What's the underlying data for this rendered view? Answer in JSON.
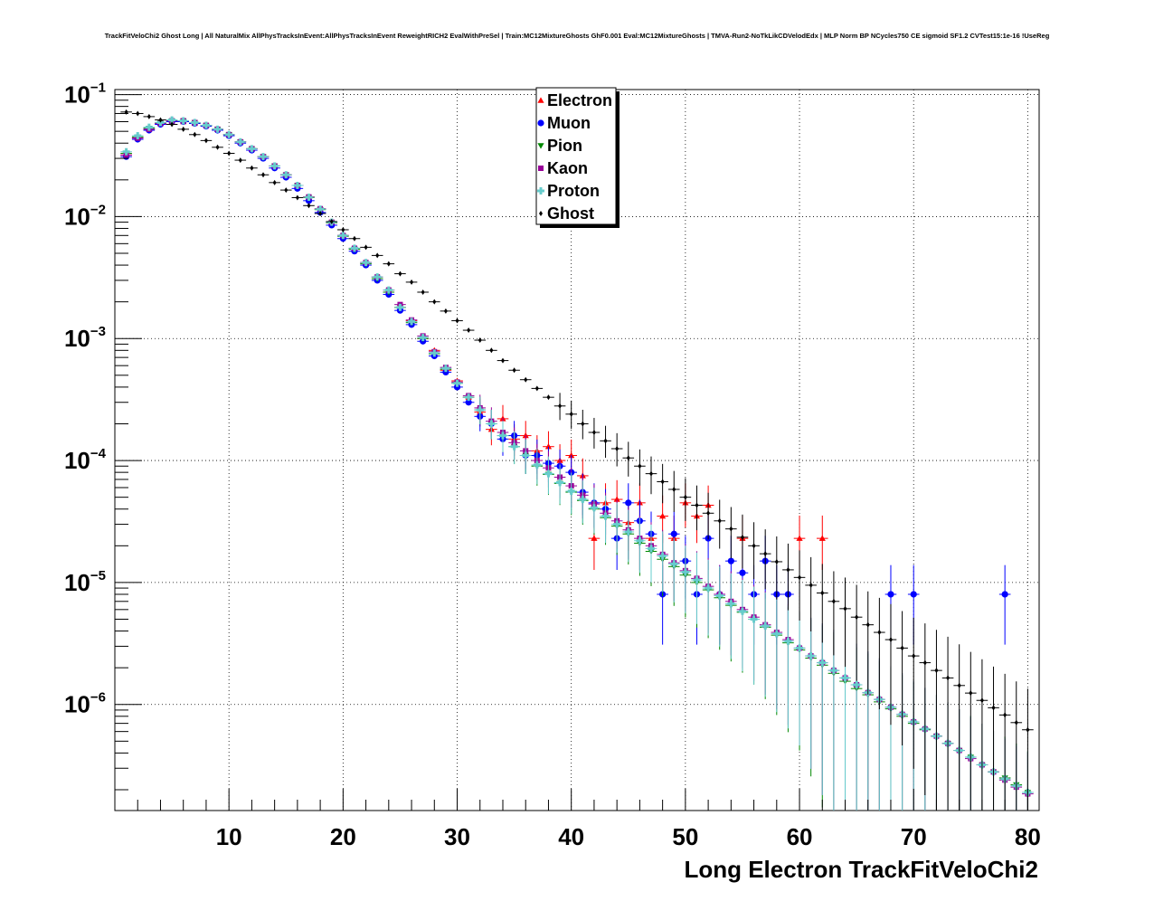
{
  "page_title": "TrackFitVeloChi2 Ghost Long | All NaturalMix AllPhysTracksInEvent:AllPhysTracksInEvent ReweightRICH2 EvalWithPreSel | Train:MC12MixtureGhosts GhF0.001 Eval:MC12MixtureGhosts | TMVA-Run2-NoTkLikCDVelodEdx | MLP Norm BP NCycles750 CE sigmoid SF1.2 CVTest15:1e-16 !UseReg",
  "chart_data": {
    "type": "scatter",
    "title": "TrackFitVeloChi2 Ghost Long | All NaturalMix AllPhysTracksInEvent:AllPhysTracksInEvent ReweightRICH2 EvalWithPreSel | Train:MC12MixtureGhosts GhF0.001 Eval:MC12MixtureGhosts | TMVA-Run2-NoTkLikCDVelodEdx | MLP Norm BP NCycles750 CE sigmoid SF1.2 CVTest15:1e-16 !UseReg",
    "xlabel": "Long Electron TrackFitVeloChi2",
    "ylabel": "",
    "xlim": [
      0,
      81
    ],
    "ylim": [
      1.35e-07,
      0.11
    ],
    "yscale": "log",
    "grid": true,
    "legend_position": "top-center",
    "x_ticks": [
      "10",
      "20",
      "30",
      "40",
      "50",
      "60",
      "70",
      "80"
    ],
    "y_ticks": [
      {
        "base": "10",
        "exp": "−1"
      },
      {
        "base": "10",
        "exp": "−2"
      },
      {
        "base": "10",
        "exp": "−3"
      },
      {
        "base": "10",
        "exp": "−4"
      },
      {
        "base": "10",
        "exp": "−5"
      },
      {
        "base": "10",
        "exp": "−6"
      }
    ],
    "series": [
      {
        "name": "Electron",
        "color": "#ff0000",
        "marker": "triangle-up",
        "x": [
          1,
          2,
          3,
          4,
          5,
          6,
          7,
          8,
          9,
          10,
          11,
          12,
          13,
          14,
          15,
          16,
          17,
          18,
          19,
          20,
          21,
          22,
          23,
          24,
          25,
          26,
          27,
          28,
          29,
          30,
          31,
          32,
          33,
          34,
          35,
          36,
          37,
          38,
          39,
          40,
          41,
          42,
          43,
          44,
          45,
          46,
          47,
          48,
          49,
          50,
          51,
          52,
          55,
          60,
          62
        ],
        "y": [
          0.032,
          0.044,
          0.052,
          0.058,
          0.06,
          0.06,
          0.058,
          0.056,
          0.052,
          0.047,
          0.041,
          0.036,
          0.031,
          0.026,
          0.022,
          0.018,
          0.0145,
          0.0115,
          0.009,
          0.007,
          0.0055,
          0.0042,
          0.0032,
          0.0025,
          0.0018,
          0.0014,
          0.001,
          0.0008,
          0.00055,
          0.00045,
          0.00033,
          0.00025,
          0.00018,
          0.00022,
          0.00015,
          0.00016,
          0.00012,
          0.00013,
          0.0001,
          0.00011,
          7.5e-05,
          2.3e-05,
          4.5e-05,
          4.8e-05,
          3.1e-05,
          4.5e-05,
          2.3e-05,
          3.5e-05,
          2.3e-05,
          4.5e-05,
          3.5e-05,
          4.3e-05,
          2.3e-05,
          2.3e-05,
          2.3e-05
        ]
      },
      {
        "name": "Muon",
        "color": "#0000ff",
        "marker": "circle",
        "x": [
          1,
          2,
          3,
          4,
          5,
          6,
          7,
          8,
          9,
          10,
          11,
          12,
          13,
          14,
          15,
          16,
          17,
          18,
          19,
          20,
          21,
          22,
          23,
          24,
          25,
          26,
          27,
          28,
          29,
          30,
          31,
          32,
          33,
          34,
          35,
          36,
          37,
          38,
          39,
          40,
          41,
          42,
          43,
          44,
          45,
          46,
          47,
          48,
          49,
          50,
          51,
          52,
          53,
          54,
          55,
          56,
          57,
          58,
          59,
          68,
          70,
          78
        ],
        "y": [
          0.031,
          0.043,
          0.051,
          0.057,
          0.06,
          0.06,
          0.058,
          0.055,
          0.051,
          0.046,
          0.04,
          0.035,
          0.03,
          0.025,
          0.021,
          0.017,
          0.0135,
          0.0108,
          0.0085,
          0.0066,
          0.0052,
          0.004,
          0.003,
          0.0023,
          0.0017,
          0.0013,
          0.00095,
          0.00072,
          0.00053,
          0.0004,
          0.0003,
          0.00023,
          0.0002,
          0.00015,
          0.00016,
          0.00011,
          0.00011,
          9.5e-05,
          9e-05,
          8e-05,
          5.5e-05,
          4.5e-05,
          4e-05,
          2.3e-05,
          4.5e-05,
          3.2e-05,
          2.5e-05,
          8e-06,
          2.5e-05,
          1.5e-05,
          8e-06,
          2.3e-05,
          8e-06,
          1.5e-05,
          1.2e-05,
          8e-06,
          1.5e-05,
          8e-06,
          8e-06,
          8e-06,
          8e-06,
          8e-06
        ]
      },
      {
        "name": "Pion",
        "color": "#008800",
        "marker": "triangle-down",
        "x": [
          1,
          2,
          3,
          4,
          5,
          6,
          7,
          8,
          9,
          10,
          11,
          12,
          13,
          14,
          15,
          16,
          17,
          18,
          19,
          20,
          21,
          22,
          23,
          24,
          25,
          26,
          27,
          28,
          29,
          30,
          31,
          32,
          33,
          34,
          35,
          36,
          37,
          38,
          39,
          40,
          41,
          42,
          43,
          44,
          45,
          46,
          47,
          48,
          49,
          50,
          51,
          52,
          53,
          54,
          55,
          56,
          57,
          58,
          59,
          60,
          61,
          62,
          63,
          64,
          65,
          66,
          67,
          68,
          69,
          70,
          71,
          72,
          73,
          74,
          75,
          76,
          77,
          78,
          79,
          80
        ],
        "y": [
          0.033,
          0.045,
          0.053,
          0.059,
          0.061,
          0.061,
          0.059,
          0.056,
          0.052,
          0.047,
          0.041,
          0.036,
          0.031,
          0.026,
          0.022,
          0.018,
          0.0143,
          0.0114,
          0.0089,
          0.0069,
          0.0054,
          0.0041,
          0.0031,
          0.0024,
          0.0018,
          0.00135,
          0.001,
          0.00075,
          0.00056,
          0.00043,
          0.00033,
          0.00026,
          0.0002,
          0.00016,
          0.00013,
          0.00011,
          9e-05,
          7.7e-05,
          6.5e-05,
          5.5e-05,
          4.7e-05,
          4e-05,
          3.4e-05,
          2.9e-05,
          2.5e-05,
          2.1e-05,
          1.8e-05,
          1.55e-05,
          1.35e-05,
          1.15e-05,
          1e-05,
          8.7e-06,
          7.5e-06,
          6.5e-06,
          5.7e-06,
          5e-06,
          4.3e-06,
          3.7e-06,
          3.2e-06,
          2.8e-06,
          2.4e-06,
          2.1e-06,
          1.8e-06,
          1.55e-06,
          1.35e-06,
          1.2e-06,
          1.05e-06,
          9.2e-07,
          8e-07,
          7e-07,
          6.2e-07,
          5.5e-07,
          4.8e-07,
          4.2e-07,
          3.7e-07,
          3.2e-07,
          2.8e-07,
          2.5e-07,
          2.2e-07,
          1.9e-07
        ]
      },
      {
        "name": "Kaon",
        "color": "#990099",
        "marker": "square",
        "x": [
          1,
          2,
          3,
          4,
          5,
          6,
          7,
          8,
          9,
          10,
          11,
          12,
          13,
          14,
          15,
          16,
          17,
          18,
          19,
          20,
          21,
          22,
          23,
          24,
          25,
          26,
          27,
          28,
          29,
          30,
          31,
          32,
          33,
          34,
          35,
          36,
          37,
          38,
          39,
          40,
          41,
          42,
          43,
          44,
          45,
          46,
          47,
          48,
          49,
          50,
          51,
          52,
          53,
          54,
          55,
          56,
          57,
          58,
          59,
          60,
          61,
          62,
          63,
          64,
          65,
          66,
          67,
          68,
          69,
          70,
          71,
          72,
          73,
          74,
          75,
          76,
          77,
          78,
          79,
          80
        ],
        "y": [
          0.032,
          0.044,
          0.052,
          0.058,
          0.061,
          0.061,
          0.059,
          0.056,
          0.052,
          0.047,
          0.041,
          0.036,
          0.031,
          0.026,
          0.022,
          0.018,
          0.0145,
          0.0116,
          0.009,
          0.007,
          0.0055,
          0.0042,
          0.0032,
          0.0025,
          0.0019,
          0.00142,
          0.00105,
          0.00078,
          0.00058,
          0.00044,
          0.00034,
          0.00027,
          0.00021,
          0.00017,
          0.00014,
          0.00012,
          0.0001,
          8.7e-05,
          7.3e-05,
          6.2e-05,
          5.2e-05,
          4.4e-05,
          3.7e-05,
          3.2e-05,
          2.7e-05,
          2.3e-05,
          2e-05,
          1.7e-05,
          1.45e-05,
          1.25e-05,
          1.08e-05,
          9.3e-06,
          8e-06,
          7e-06,
          6e-06,
          5.2e-06,
          4.5e-06,
          3.9e-06,
          3.4e-06,
          2.9e-06,
          2.5e-06,
          2.2e-06,
          1.9e-06,
          1.65e-06,
          1.45e-06,
          1.25e-06,
          1.1e-06,
          9.5e-07,
          8.3e-07,
          7.2e-07,
          6.3e-07,
          5.5e-07,
          4.8e-07,
          4.2e-07,
          3.6e-07,
          3.2e-07,
          2.8e-07,
          2.4e-07,
          2.1e-07,
          1.85e-07
        ]
      },
      {
        "name": "Proton",
        "color": "#66cccc",
        "marker": "cross",
        "x": [
          1,
          2,
          3,
          4,
          5,
          6,
          7,
          8,
          9,
          10,
          11,
          12,
          13,
          14,
          15,
          16,
          17,
          18,
          19,
          20,
          21,
          22,
          23,
          24,
          25,
          26,
          27,
          28,
          29,
          30,
          31,
          32,
          33,
          34,
          35,
          36,
          37,
          38,
          39,
          40,
          41,
          42,
          43,
          44,
          45,
          46,
          47,
          48,
          49,
          50,
          51,
          52,
          53,
          54,
          55,
          56,
          57,
          58,
          59,
          60,
          61,
          62,
          63,
          64,
          65,
          66,
          67,
          68,
          69,
          70,
          71,
          72,
          73,
          74,
          75,
          76,
          77,
          78,
          79,
          80
        ],
        "y": [
          0.034,
          0.046,
          0.054,
          0.059,
          0.062,
          0.061,
          0.059,
          0.056,
          0.052,
          0.047,
          0.041,
          0.036,
          0.031,
          0.026,
          0.022,
          0.018,
          0.0144,
          0.0115,
          0.009,
          0.007,
          0.0055,
          0.0042,
          0.0032,
          0.0025,
          0.0018,
          0.00138,
          0.00102,
          0.00076,
          0.00057,
          0.00043,
          0.00033,
          0.00026,
          0.0002,
          0.00016,
          0.00013,
          0.00011,
          9.2e-05,
          7.8e-05,
          6.6e-05,
          5.6e-05,
          4.8e-05,
          4.1e-05,
          3.5e-05,
          3e-05,
          2.6e-05,
          2.2e-05,
          1.9e-05,
          1.65e-05,
          1.42e-05,
          1.22e-05,
          1.05e-05,
          9e-06,
          7.8e-06,
          6.7e-06,
          5.8e-06,
          5e-06,
          4.4e-06,
          3.8e-06,
          3.3e-06,
          2.9e-06,
          2.5e-06,
          2.2e-06,
          1.9e-06,
          1.65e-06,
          1.45e-06,
          1.25e-06,
          1.1e-06,
          9.5e-07,
          8.3e-07,
          7.2e-07,
          6.3e-07,
          5.5e-07,
          4.8e-07,
          4.2e-07,
          3.7e-07,
          3.2e-07,
          2.8e-07,
          2.45e-07,
          2.15e-07,
          1.9e-07
        ]
      },
      {
        "name": "Ghost",
        "color": "#000000",
        "marker": "diamond",
        "x": [
          1,
          2,
          3,
          4,
          5,
          6,
          7,
          8,
          9,
          10,
          11,
          12,
          13,
          14,
          15,
          16,
          17,
          18,
          19,
          20,
          21,
          22,
          23,
          24,
          25,
          26,
          27,
          28,
          29,
          30,
          31,
          32,
          33,
          34,
          35,
          36,
          37,
          38,
          39,
          40,
          41,
          42,
          43,
          44,
          45,
          46,
          47,
          48,
          49,
          50,
          51,
          52,
          53,
          54,
          55,
          56,
          57,
          58,
          59,
          60,
          61,
          62,
          63,
          64,
          65,
          66,
          67,
          68,
          69,
          70,
          71,
          72,
          73,
          74,
          75,
          76,
          77,
          78,
          79,
          80
        ],
        "y": [
          0.072,
          0.07,
          0.066,
          0.062,
          0.057,
          0.052,
          0.047,
          0.042,
          0.037,
          0.033,
          0.029,
          0.025,
          0.022,
          0.019,
          0.0165,
          0.0143,
          0.0123,
          0.0106,
          0.0091,
          0.0078,
          0.0066,
          0.0056,
          0.0048,
          0.0041,
          0.0034,
          0.0029,
          0.0024,
          0.002,
          0.00168,
          0.0014,
          0.00117,
          0.00097,
          0.0008,
          0.00066,
          0.00055,
          0.00046,
          0.00039,
          0.00033,
          0.00028,
          0.00024,
          0.0002,
          0.00017,
          0.000145,
          0.000125,
          0.000105,
          9e-05,
          7.8e-05,
          6.7e-05,
          5.8e-05,
          5e-05,
          4.3e-05,
          3.7e-05,
          3.2e-05,
          2.75e-05,
          2.35e-05,
          2e-05,
          1.72e-05,
          1.48e-05,
          1.27e-05,
          1.1e-05,
          9.5e-06,
          8.2e-06,
          7e-06,
          6.1e-06,
          5.2e-06,
          4.5e-06,
          3.9e-06,
          3.4e-06,
          2.9e-06,
          2.5e-06,
          2.2e-06,
          1.9e-06,
          1.65e-06,
          1.43e-06,
          1.24e-06,
          1.08e-06,
          9.4e-07,
          8.2e-07,
          7.1e-07,
          6.2e-07
        ]
      }
    ]
  }
}
